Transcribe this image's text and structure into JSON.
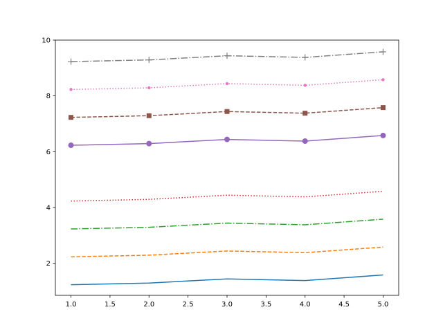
{
  "chart_data": {
    "type": "line",
    "title": "",
    "xlabel": "",
    "ylabel": "",
    "xlim": [
      0.8,
      5.2
    ],
    "ylim": [
      0.85,
      10.0
    ],
    "grid": false,
    "x_ticks": [
      1.0,
      1.5,
      2.0,
      2.5,
      3.0,
      3.5,
      4.0,
      4.5,
      5.0
    ],
    "x_tick_labels": [
      "1.0",
      "1.5",
      "2.0",
      "2.5",
      "3.0",
      "3.5",
      "4.0",
      "4.5",
      "5.0"
    ],
    "y_ticks": [
      2,
      4,
      6,
      8,
      10
    ],
    "y_tick_labels": [
      "2",
      "4",
      "6",
      "8",
      "10"
    ],
    "x": [
      1,
      2,
      3,
      4,
      5
    ],
    "series": [
      {
        "values": [
          1.23,
          1.29,
          1.44,
          1.38,
          1.58
        ],
        "color": "#1f77b4",
        "dash": "solid",
        "marker": "none"
      },
      {
        "values": [
          2.23,
          2.29,
          2.44,
          2.38,
          2.58
        ],
        "color": "#ff7f0e",
        "dash": "dashed",
        "marker": "none"
      },
      {
        "values": [
          3.23,
          3.29,
          3.44,
          3.38,
          3.58
        ],
        "color": "#2ca02c",
        "dash": "dashdot",
        "marker": "none"
      },
      {
        "values": [
          4.23,
          4.29,
          4.44,
          4.38,
          4.58
        ],
        "color": "#d62728",
        "dash": "dotted",
        "marker": "none"
      },
      {
        "values": [
          6.23,
          6.29,
          6.44,
          6.38,
          6.58
        ],
        "color": "#9467bd",
        "dash": "solid",
        "marker": "circle"
      },
      {
        "values": [
          7.23,
          7.29,
          7.44,
          7.38,
          7.58
        ],
        "color": "#8c564b",
        "dash": "dashed",
        "marker": "square"
      },
      {
        "values": [
          8.23,
          8.29,
          8.44,
          8.38,
          8.58
        ],
        "color": "#e377c2",
        "dash": "dotted",
        "marker": "small-circle"
      },
      {
        "values": [
          9.23,
          9.29,
          9.44,
          9.38,
          9.58
        ],
        "color": "#7f7f7f",
        "dash": "dashdot",
        "marker": "plus"
      }
    ]
  }
}
